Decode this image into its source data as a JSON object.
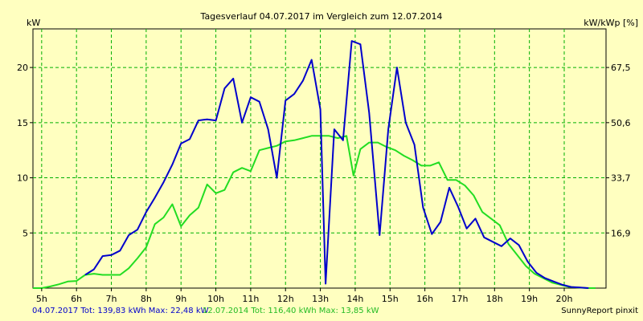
{
  "chart_data": {
    "type": "line",
    "title": "Tagesverlauf 04.07.2017 im Vergleich zum 12.07.2014",
    "ylabel_left": "kW",
    "ylabel_right": "kW/kWp [%]",
    "xlim": [
      4.75,
      21.2
    ],
    "ylim": [
      0,
      23.5
    ],
    "x_ticks": [
      5,
      6,
      7,
      8,
      9,
      10,
      11,
      12,
      13,
      14,
      15,
      16,
      17,
      18,
      19,
      20
    ],
    "x_tick_labels": [
      "5h",
      "6h",
      "7h",
      "8h",
      "9h",
      "10h",
      "11h",
      "12h",
      "13h",
      "14h",
      "15h",
      "16h",
      "17h",
      "18h",
      "19h",
      "20h"
    ],
    "y_ticks_left": [
      5,
      10,
      15,
      20
    ],
    "y_ticks_left_labels": [
      "5",
      "10",
      "15",
      "20"
    ],
    "y_ticks_right": [
      5,
      10,
      15,
      20
    ],
    "y_ticks_right_labels": [
      "16,9",
      "33,7",
      "50,6",
      "67,5"
    ],
    "grid": true,
    "series": [
      {
        "color": "#0000CC",
        "x": [
          6.25,
          6.5,
          6.75,
          7.0,
          7.25,
          7.5,
          7.75,
          8.0,
          8.25,
          8.5,
          8.75,
          9.0,
          9.25,
          9.5,
          9.75,
          10.0,
          10.25,
          10.5,
          10.75,
          11.0,
          11.25,
          11.5,
          11.75,
          12.0,
          12.25,
          12.5,
          12.75,
          13.0,
          13.15,
          13.4,
          13.65,
          13.9,
          14.15,
          14.4,
          14.7,
          14.95,
          15.2,
          15.45,
          15.7,
          15.95,
          16.2,
          16.45,
          16.7,
          16.95,
          17.2,
          17.45,
          17.7,
          17.95,
          18.2,
          18.45,
          18.7,
          18.95,
          19.2,
          19.45,
          19.7,
          19.95,
          20.2,
          20.45,
          20.7
        ],
        "y": [
          1.2,
          1.7,
          2.9,
          3.0,
          3.4,
          4.8,
          5.3,
          6.9,
          8.2,
          9.6,
          11.2,
          13.1,
          13.5,
          15.2,
          15.3,
          15.2,
          18.1,
          19.0,
          15.0,
          17.3,
          16.9,
          14.4,
          10.0,
          17.0,
          17.6,
          18.8,
          20.7,
          16.2,
          0.4,
          14.4,
          13.4,
          22.4,
          22.1,
          15.9,
          4.8,
          14.4,
          20.0,
          15.0,
          13.0,
          7.3,
          4.9,
          6.0,
          9.1,
          7.4,
          5.4,
          6.3,
          4.6,
          4.2,
          3.8,
          4.5,
          3.9,
          2.4,
          1.4,
          0.9,
          0.6,
          0.3,
          0.1,
          0.05,
          0.0
        ]
      },
      {
        "color": "#22DD22",
        "x": [
          4.75,
          5.0,
          5.25,
          5.5,
          5.75,
          6.0,
          6.25,
          6.5,
          6.75,
          7.0,
          7.25,
          7.5,
          7.75,
          8.0,
          8.25,
          8.5,
          8.75,
          9.0,
          9.25,
          9.5,
          9.75,
          10.0,
          10.25,
          10.5,
          10.75,
          11.0,
          11.25,
          11.5,
          11.75,
          12.0,
          12.25,
          12.5,
          12.75,
          13.0,
          13.25,
          13.5,
          13.75,
          13.95,
          14.15,
          14.4,
          14.65,
          14.9,
          15.15,
          15.4,
          15.65,
          15.9,
          16.15,
          16.4,
          16.65,
          16.9,
          17.15,
          17.4,
          17.65,
          17.9,
          18.15,
          18.4,
          18.65,
          18.9,
          19.15,
          19.4,
          19.65,
          19.9,
          20.15,
          20.4,
          20.65,
          20.9
        ],
        "y": [
          0.0,
          0.0,
          0.15,
          0.35,
          0.6,
          0.65,
          1.2,
          1.3,
          1.2,
          1.2,
          1.2,
          1.8,
          2.7,
          3.7,
          5.8,
          6.4,
          7.6,
          5.6,
          6.6,
          7.3,
          9.4,
          8.6,
          8.9,
          10.5,
          10.9,
          10.6,
          12.5,
          12.7,
          12.9,
          13.3,
          13.4,
          13.6,
          13.8,
          13.8,
          13.8,
          13.6,
          13.8,
          10.2,
          12.6,
          13.2,
          13.2,
          12.8,
          12.5,
          12.0,
          11.6,
          11.1,
          11.1,
          11.4,
          9.8,
          9.8,
          9.3,
          8.4,
          6.9,
          6.3,
          5.7,
          4.0,
          3.0,
          2.0,
          1.3,
          0.9,
          0.5,
          0.3,
          0.1,
          0.05,
          0.0,
          0.0
        ]
      }
    ]
  },
  "footer": {
    "series1_text": "04.07.2017 Tot: 139,83 kWh Max: 22,48 kW",
    "series2_text": "12.07.2014 Tot: 116,40 kWh Max: 13,85 kW",
    "brand": "SunnyReport pinxit"
  }
}
